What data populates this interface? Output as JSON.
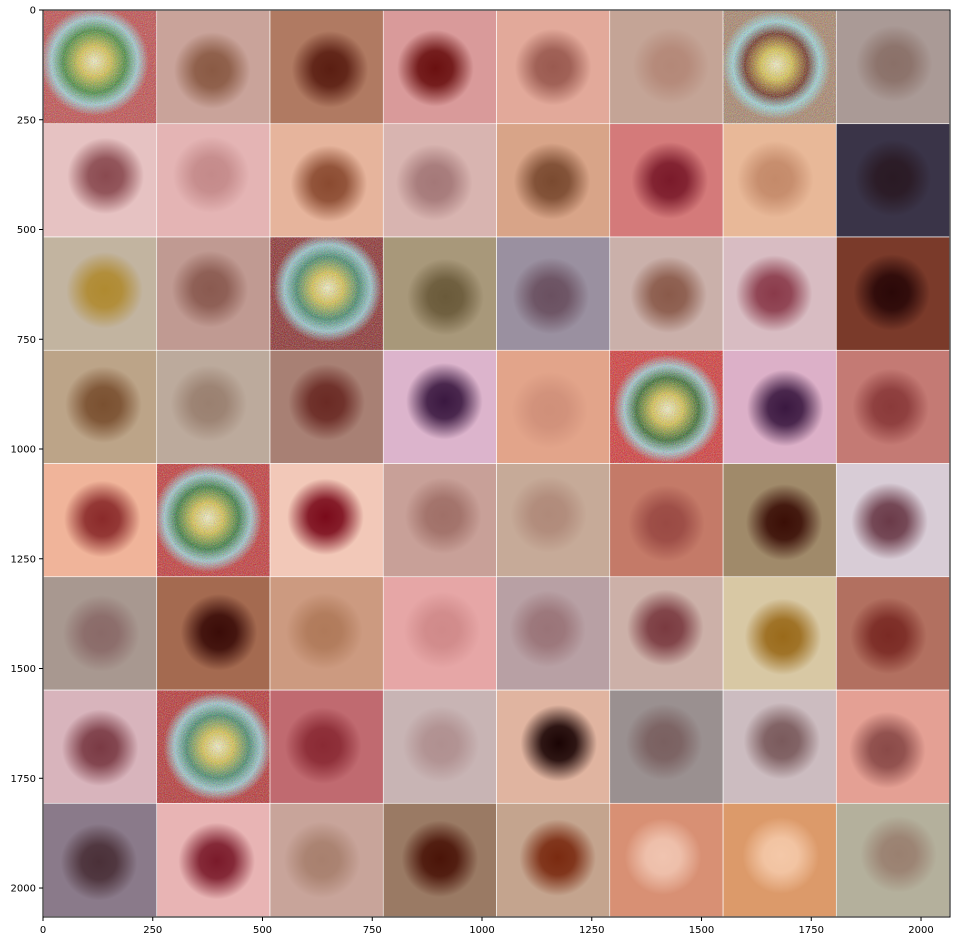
{
  "axes": {
    "x_range": [
      0,
      2066
    ],
    "y_range": [
      0,
      2066
    ],
    "x_ticks": [
      {
        "value": 0,
        "label": "0"
      },
      {
        "value": 250,
        "label": "250"
      },
      {
        "value": 500,
        "label": "500"
      },
      {
        "value": 750,
        "label": "750"
      },
      {
        "value": 1000,
        "label": "1000"
      },
      {
        "value": 1250,
        "label": "1250"
      },
      {
        "value": 1500,
        "label": "1500"
      },
      {
        "value": 1750,
        "label": "1750"
      },
      {
        "value": 2000,
        "label": "2000"
      }
    ],
    "y_ticks": [
      {
        "value": 0,
        "label": "0"
      },
      {
        "value": 250,
        "label": "250"
      },
      {
        "value": 500,
        "label": "500"
      },
      {
        "value": 750,
        "label": "750"
      },
      {
        "value": 1000,
        "label": "1000"
      },
      {
        "value": 1250,
        "label": "1250"
      },
      {
        "value": 1500,
        "label": "1500"
      },
      {
        "value": 1750,
        "label": "1750"
      },
      {
        "value": 2000,
        "label": "2000"
      }
    ]
  },
  "grid": {
    "rows": 8,
    "cols": 8,
    "tile_size": 256,
    "padding": 2
  },
  "tiles": [
    {
      "bg": "#c24a4a",
      "lesion": "#3a8a3a",
      "noise": true
    },
    {
      "bg": "#c9a39a",
      "lesion": "#8a5a44"
    },
    {
      "bg": "#b07a62",
      "lesion": "#5a1e12"
    },
    {
      "bg": "#d99a9a",
      "lesion": "#6a1010"
    },
    {
      "bg": "#e2a99a",
      "lesion": "#9a5a50"
    },
    {
      "bg": "#c4a496",
      "lesion": "#b48878"
    },
    {
      "bg": "#a8846a",
      "lesion": "#6a2a1a",
      "noise": true
    },
    {
      "bg": "#aa9a96",
      "lesion": "#8a7068"
    },
    {
      "bg": "#e6c2c2",
      "lesion": "#8a4a50"
    },
    {
      "bg": "#e4b4b4",
      "lesion": "#c48a8a"
    },
    {
      "bg": "#e6b49c",
      "lesion": "#8a4a30"
    },
    {
      "bg": "#d8b4b0",
      "lesion": "#a47878"
    },
    {
      "bg": "#d8a488",
      "lesion": "#7a4a30"
    },
    {
      "bg": "#d47a7a",
      "lesion": "#7a1a2a"
    },
    {
      "bg": "#e8b898",
      "lesion": "#c48a6a"
    },
    {
      "bg": "#3a3448",
      "lesion": "#2a1a24"
    },
    {
      "bg": "#c2b4a0",
      "lesion": "#b08a30"
    },
    {
      "bg": "#c09a92",
      "lesion": "#8a5a50"
    },
    {
      "bg": "#8a2a2a",
      "lesion": "#3a8a6a",
      "noise": true
    },
    {
      "bg": "#a8987a",
      "lesion": "#6a5a3a"
    },
    {
      "bg": "#9a90a0",
      "lesion": "#6a5060"
    },
    {
      "bg": "#cab0aa",
      "lesion": "#8a5a4a"
    },
    {
      "bg": "#d8bcc2",
      "lesion": "#8a3a4a"
    },
    {
      "bg": "#7a3a2a",
      "lesion": "#2a0808"
    },
    {
      "bg": "#bca488",
      "lesion": "#7a5030"
    },
    {
      "bg": "#bcaa9c",
      "lesion": "#9a8070"
    },
    {
      "bg": "#a88074",
      "lesion": "#6a2a24"
    },
    {
      "bg": "#dcb4cc",
      "lesion": "#3a1840"
    },
    {
      "bg": "#e2a48a",
      "lesion": "#d0907a"
    },
    {
      "bg": "#d43434",
      "lesion": "#2a6a2a",
      "noise": true
    },
    {
      "bg": "#dcb0c8",
      "lesion": "#3a1840"
    },
    {
      "bg": "#c47a74",
      "lesion": "#8a3a3a"
    },
    {
      "bg": "#f0b49a",
      "lesion": "#8a2a2a"
    },
    {
      "bg": "#c43434",
      "lesion": "#2a7a3a",
      "noise": true
    },
    {
      "bg": "#f2c8b8",
      "lesion": "#7a0a1a"
    },
    {
      "bg": "#c8a098",
      "lesion": "#a07068"
    },
    {
      "bg": "#c6aa98",
      "lesion": "#b08a7a"
    },
    {
      "bg": "#c47a68",
      "lesion": "#9a4a44"
    },
    {
      "bg": "#a08a6a",
      "lesion": "#3a0e06"
    },
    {
      "bg": "#d8ccd6",
      "lesion": "#6a3a48"
    },
    {
      "bg": "#a89890",
      "lesion": "#8a6a68"
    },
    {
      "bg": "#a46a50",
      "lesion": "#3a0c08"
    },
    {
      "bg": "#cc9a80",
      "lesion": "#b07a5a"
    },
    {
      "bg": "#e6a6a6",
      "lesion": "#d08a8a"
    },
    {
      "bg": "#b8a0a4",
      "lesion": "#9a7478"
    },
    {
      "bg": "#ccb0a8",
      "lesion": "#7a3a40"
    },
    {
      "bg": "#d8c8a4",
      "lesion": "#9a6a1a"
    },
    {
      "bg": "#b27060",
      "lesion": "#7a2a24"
    },
    {
      "bg": "#d8b4bc",
      "lesion": "#7a3a44"
    },
    {
      "bg": "#b83030",
      "lesion": "#3a8a6a",
      "noise": true
    },
    {
      "bg": "#c06a70",
      "lesion": "#8a2a34"
    },
    {
      "bg": "#c8b4b4",
      "lesion": "#b09090"
    },
    {
      "bg": "#e0b4a0",
      "lesion": "#1a0404"
    },
    {
      "bg": "#9a9090",
      "lesion": "#7a6060"
    },
    {
      "bg": "#ccbcc0",
      "lesion": "#7a5a5c"
    },
    {
      "bg": "#e4a094",
      "lesion": "#8a4a48"
    },
    {
      "bg": "#8a7a8a",
      "lesion": "#4a3038"
    },
    {
      "bg": "#e8b4b4",
      "lesion": "#7a1a2a"
    },
    {
      "bg": "#c8a49a",
      "lesion": "#a8806e"
    },
    {
      "bg": "#9a7a64",
      "lesion": "#4a1408"
    },
    {
      "bg": "#c4a48e",
      "lesion": "#7a2a10"
    },
    {
      "bg": "#d89074",
      "lesion": "#f0c4b0"
    },
    {
      "bg": "#dc9a6a",
      "lesion": "#f4c8a8"
    },
    {
      "bg": "#b4b09c",
      "lesion": "#9a8070"
    }
  ]
}
